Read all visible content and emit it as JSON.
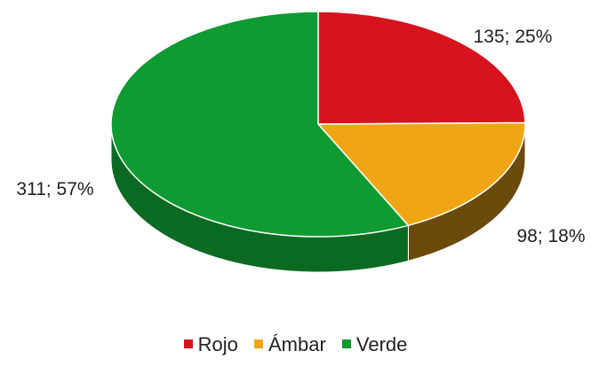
{
  "chart_data": {
    "type": "pie",
    "style": "3d",
    "slices": [
      {
        "label": "Rojo",
        "value": 135,
        "percent": 25,
        "data_label": "135; 25%",
        "color": "#d7141e",
        "side_color": "#8a0c12"
      },
      {
        "label": "Ámbar",
        "value": 98,
        "percent": 18,
        "data_label": "98; 18%",
        "color": "#f0a614",
        "side_color": "#6b4a0c"
      },
      {
        "label": "Verde",
        "value": 311,
        "percent": 57,
        "data_label": "311; 57%",
        "color": "#0f9a32",
        "side_color": "#0a6a22"
      }
    ],
    "legend": {
      "position": "bottom",
      "items": [
        {
          "label": "Rojo",
          "color": "#d7141e"
        },
        {
          "label": "Ámbar",
          "color": "#f0a614"
        },
        {
          "label": "Verde",
          "color": "#0f9a32"
        }
      ]
    }
  }
}
